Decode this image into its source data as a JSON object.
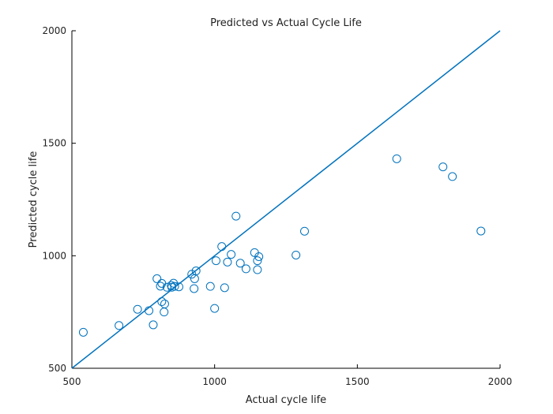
{
  "chart_data": {
    "type": "scatter",
    "title": "Predicted vs Actual Cycle Life",
    "xlabel": "Actual cycle life",
    "ylabel": "Predicted cycle life",
    "xlim": [
      500,
      2000
    ],
    "ylim": [
      500,
      2000
    ],
    "xticks": [
      500,
      1000,
      1500,
      2000
    ],
    "yticks": [
      500,
      1000,
      1500,
      2000
    ],
    "grid": false,
    "colors": {
      "series": "#0072BD",
      "axis": "#000000"
    },
    "reference_line": {
      "from": [
        500,
        500
      ],
      "to": [
        2000,
        2000
      ]
    },
    "series": [
      {
        "marker": "open-circle",
        "points": [
          [
            540,
            660
          ],
          [
            665,
            690
          ],
          [
            730,
            762
          ],
          [
            770,
            756
          ],
          [
            785,
            693
          ],
          [
            798,
            898
          ],
          [
            810,
            865
          ],
          [
            815,
            877
          ],
          [
            815,
            796
          ],
          [
            823,
            750
          ],
          [
            825,
            786
          ],
          [
            833,
            860
          ],
          [
            848,
            868
          ],
          [
            850,
            860
          ],
          [
            856,
            878
          ],
          [
            860,
            864
          ],
          [
            875,
            862
          ],
          [
            920,
            918
          ],
          [
            928,
            854
          ],
          [
            930,
            898
          ],
          [
            935,
            933
          ],
          [
            985,
            864
          ],
          [
            1000,
            766
          ],
          [
            1005,
            978
          ],
          [
            1025,
            1041
          ],
          [
            1035,
            858
          ],
          [
            1045,
            972
          ],
          [
            1058,
            1006
          ],
          [
            1075,
            1176
          ],
          [
            1090,
            967
          ],
          [
            1110,
            942
          ],
          [
            1140,
            1014
          ],
          [
            1150,
            938
          ],
          [
            1150,
            978
          ],
          [
            1155,
            996
          ],
          [
            1285,
            1003
          ],
          [
            1315,
            1109
          ],
          [
            1638,
            1431
          ],
          [
            1800,
            1395
          ],
          [
            1833,
            1352
          ],
          [
            1933,
            1110
          ]
        ]
      }
    ]
  }
}
